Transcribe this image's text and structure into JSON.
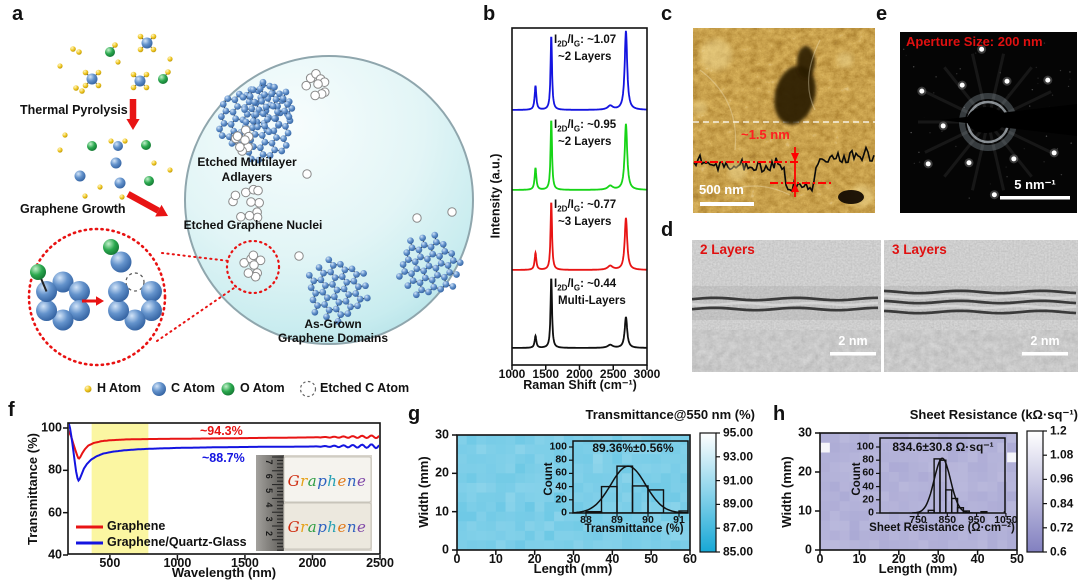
{
  "panels": {
    "a": {
      "label": "a",
      "labels": {
        "thermal_pyrolysis": "Thermal Pyrolysis",
        "graphene_growth": "Graphene Growth",
        "etched_multilayer_line1": "Etched Multilayer",
        "etched_multilayer_line2": "Adlayers",
        "etched_nuclei": "Etched Graphene Nuclei",
        "as_grown_line1": "As-Grown",
        "as_grown_line2": "Graphene Domains"
      },
      "legend": [
        {
          "name": "h-atom",
          "label": "H Atom",
          "color": "#f0c41c"
        },
        {
          "name": "c-atom",
          "label": "C Atom",
          "color": "#4d80c4"
        },
        {
          "name": "o-atom",
          "label": "O Atom",
          "color": "#22a04a"
        },
        {
          "name": "etched-c-atom",
          "label": "Etched C Atom",
          "color": "#ffffff"
        }
      ]
    },
    "b": {
      "label": "b",
      "ratio_parts": {
        "i_sym": "I",
        "sub_2d": "2D",
        "slash_i": "/I",
        "sub_g": "G",
        "colon": ":"
      }
    },
    "c": {
      "label": "c",
      "height_annotation": "~1.5 nm",
      "scale_bar": "500 nm"
    },
    "d": {
      "label": "d",
      "images": [
        {
          "caption": "2 Layers",
          "scale_bar": "2 nm",
          "graphene_lines": 2
        },
        {
          "caption": "3 Layers",
          "scale_bar": "2 nm",
          "graphene_lines": 3
        }
      ]
    },
    "e": {
      "label": "e",
      "aperture_text": "Aperture Size: 200 nm",
      "scale_bar": "5 nm⁻¹"
    },
    "f": {
      "label": "f",
      "inset": {
        "slide_text": "Graphene",
        "letter_colors": [
          "#cf2c10",
          "#e6a21a",
          "#2f9e44",
          "#2f62c0",
          "#27a0b4",
          "#e07818",
          "#2f62c0",
          "#8048a8"
        ],
        "ruler_numbers": [
          "7",
          "6",
          "5",
          "4",
          "3",
          "2"
        ]
      }
    },
    "g": {
      "label": "g"
    },
    "h": {
      "label": "h"
    }
  },
  "chart_data": [
    {
      "id": "raman-spectra",
      "type": "line",
      "xlabel": "Raman Shift (cm⁻¹)",
      "ylabel": "Intensity (a.u.)",
      "xlim": [
        1000,
        3000
      ],
      "x_ticks": [
        "1000",
        "1500",
        "2000",
        "2500",
        "3000"
      ],
      "peak_centers": {
        "d": 1348,
        "g": 1582,
        "bump": 2455,
        "two_d": 2688
      },
      "series": [
        {
          "name": "bilayer-top",
          "color": "#1414e0",
          "ratio": "~1.07",
          "layers": "~2 Layers",
          "peak_heights": {
            "d": 24,
            "g": 74,
            "bump": 4,
            "two_d": 79
          }
        },
        {
          "name": "bilayer-2",
          "color": "#17d417",
          "ratio": "~0.95",
          "layers": "~2 Layers",
          "peak_heights": {
            "d": 22,
            "g": 70,
            "bump": 4,
            "two_d": 66
          }
        },
        {
          "name": "trilayer",
          "color": "#e81414",
          "ratio": "~0.77",
          "layers": "~3 Layers",
          "peak_heights": {
            "d": 17,
            "g": 68,
            "bump": 4,
            "two_d": 52
          }
        },
        {
          "name": "multilayer",
          "color": "#101010",
          "ratio": "~0.44",
          "layers": "Multi-Layers",
          "peak_heights": {
            "d": 12,
            "g": 70,
            "bump": 3,
            "two_d": 31
          }
        }
      ]
    },
    {
      "id": "uv-vis-transmittance",
      "type": "line",
      "xlabel": "Wavelength (nm)",
      "ylabel": "Transmittance (%)",
      "xlim": [
        190,
        2500
      ],
      "ylim": [
        40,
        103
      ],
      "x_ticks": [
        "500",
        "1000",
        "1500",
        "2000",
        "2500"
      ],
      "y_ticks": [
        "40",
        "60",
        "80",
        "100"
      ],
      "highlight_band_nm": [
        365,
        785
      ],
      "series": [
        {
          "name": "Graphene",
          "color": "#e81414",
          "annotation": "~94.3%",
          "points": [
            [
              190,
              99
            ],
            [
              210,
              96.5
            ],
            [
              230,
              92.5
            ],
            [
              245,
              89.5
            ],
            [
              258,
              87
            ],
            [
              266,
              85.8
            ],
            [
              272,
              85.6
            ],
            [
              280,
              86.2
            ],
            [
              295,
              88
            ],
            [
              315,
              90
            ],
            [
              340,
              91.7
            ],
            [
              380,
              92.9
            ],
            [
              440,
              93.8
            ],
            [
              500,
              94.2
            ],
            [
              620,
              94.6
            ],
            [
              800,
              94.8
            ],
            [
              1000,
              94.9
            ],
            [
              1300,
              95.1
            ],
            [
              1600,
              95.3
            ],
            [
              1900,
              95.5
            ],
            [
              2200,
              95.7
            ],
            [
              2500,
              95.9
            ]
          ]
        },
        {
          "name": "Graphene/Quartz-Glass",
          "color": "#1414e0",
          "annotation": "~88.7%",
          "points": [
            [
              190,
              103.5
            ],
            [
              205,
              100
            ],
            [
              222,
              93
            ],
            [
              238,
              85
            ],
            [
              250,
              79.5
            ],
            [
              260,
              76.3
            ],
            [
              268,
              75.2
            ],
            [
              276,
              75.8
            ],
            [
              290,
              78
            ],
            [
              308,
              80.8
            ],
            [
              330,
              83
            ],
            [
              360,
              85
            ],
            [
              400,
              86.6
            ],
            [
              450,
              87.9
            ],
            [
              520,
              88.8
            ],
            [
              600,
              89.4
            ],
            [
              700,
              89.9
            ],
            [
              800,
              90.2
            ],
            [
              1000,
              90.6
            ],
            [
              1300,
              90.9
            ],
            [
              1600,
              91.1
            ],
            [
              1900,
              91.2
            ],
            [
              2200,
              91.35
            ],
            [
              2500,
              91.45
            ]
          ]
        }
      ]
    },
    {
      "id": "transmittance-map",
      "type": "heatmap",
      "title": "Transmittance@550 nm (%)",
      "xlabel": "Length (mm)",
      "ylabel": "Width (mm)",
      "x_range": [
        0,
        60
      ],
      "y_range": [
        0,
        30
      ],
      "x_ticks": [
        "0",
        "10",
        "20",
        "30",
        "40",
        "50",
        "60"
      ],
      "y_ticks": [
        "0",
        "10",
        "20",
        "30"
      ],
      "mean": 89.36,
      "std": 0.56,
      "color_scale": {
        "min": 85,
        "max": 95,
        "min_color": "#17a8d6",
        "max_color": "#ffffff",
        "tick_labels": [
          "95.00",
          "93.00",
          "91.00",
          "89.00",
          "87.00",
          "85.00"
        ]
      },
      "inset_histogram": {
        "annotation": "89.36%±0.56%",
        "xlabel": "Transmittance (%)",
        "ylabel": "Count",
        "x_ticks": [
          "88",
          "89",
          "90",
          "91"
        ],
        "y_ticks": [
          "0",
          "20",
          "40",
          "60",
          "80",
          "100"
        ],
        "bin_start": 88,
        "bin_width": 0.5,
        "counts": [
          2,
          40,
          71,
          41,
          35,
          0,
          3
        ],
        "fit": {
          "mean": 89.36,
          "sigma": 0.56,
          "amp": 71
        }
      }
    },
    {
      "id": "sheet-resistance-map",
      "type": "heatmap",
      "title": "Sheet Resistance (kΩ·sq⁻¹)",
      "xlabel": "Length (mm)",
      "ylabel": "Width (mm)",
      "x_range": [
        0,
        50
      ],
      "y_range": [
        0,
        30
      ],
      "x_ticks": [
        "0",
        "10",
        "20",
        "30",
        "40",
        "50"
      ],
      "y_ticks": [
        "0",
        "10",
        "20",
        "30"
      ],
      "mean": 0.8346,
      "std": 0.0308,
      "color_scale": {
        "min": 0.6,
        "max": 1.2,
        "min_color": "#8280c0",
        "max_color": "#ffffff",
        "tick_labels": [
          "1.2",
          "1.08",
          "0.96",
          "0.84",
          "0.72",
          "0.6"
        ]
      },
      "inset_histogram": {
        "annotation": "834.6±30.8 Ω·sq⁻¹",
        "xlabel": "Sheet Resistance (Ω·cm⁻²)",
        "ylabel": "Count",
        "x_ticks": [
          "750",
          "850",
          "950",
          "1050"
        ],
        "y_ticks": [
          "0",
          "20",
          "40",
          "60",
          "80",
          "100"
        ],
        "bin_start": 785,
        "bin_width": 20,
        "counts": [
          4,
          82,
          80,
          35,
          22,
          8,
          3,
          0,
          0,
          2,
          0,
          0,
          0,
          2
        ],
        "fit": {
          "mean": 833,
          "sigma": 28,
          "amp": 83
        }
      }
    }
  ]
}
